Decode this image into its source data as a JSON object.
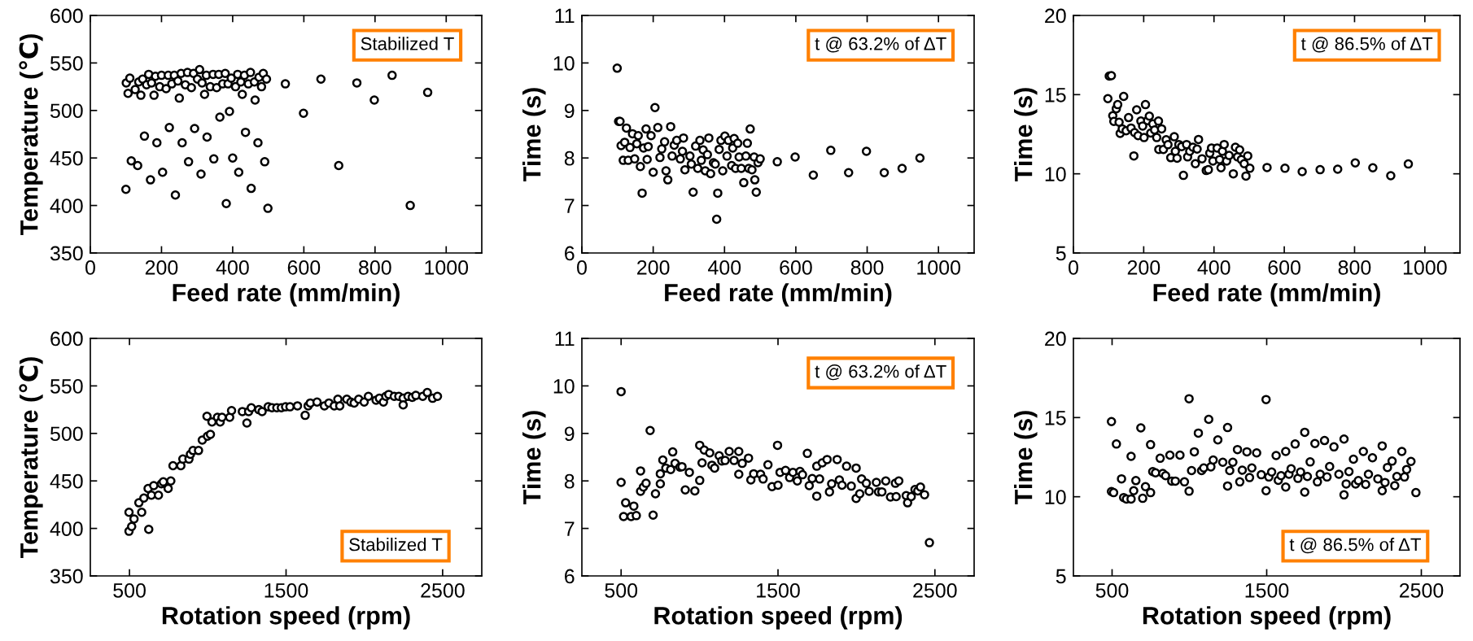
{
  "chart_data": [
    {
      "type": "scatter",
      "xlabel": "Feed rate (mm/min)",
      "ylabel": "Temperature (℃)",
      "annotations": [
        "Stabilized T"
      ],
      "marker": "circle",
      "color": "#000000",
      "xlim": [
        0,
        1100
      ],
      "xticks": [
        0,
        200,
        400,
        600,
        800,
        1000
      ],
      "ylim": [
        350,
        600
      ],
      "yticks": [
        350,
        400,
        450,
        500,
        550,
        600
      ],
      "x": [
        100,
        115,
        133,
        152,
        169,
        187,
        203,
        222,
        239,
        258,
        276,
        293,
        311,
        328,
        347,
        364,
        382,
        391,
        400,
        417,
        436,
        452,
        471,
        490,
        499,
        548,
        599,
        648,
        698,
        749,
        798,
        848,
        899,
        948,
        101,
        106,
        111,
        126,
        136,
        142,
        147,
        158,
        164,
        172,
        179,
        183,
        195,
        200,
        213,
        219,
        229,
        236,
        250,
        246,
        255,
        267,
        273,
        284,
        290,
        301,
        307,
        314,
        321,
        326,
        337,
        345,
        355,
        361,
        372,
        379,
        387,
        396,
        408,
        414,
        423,
        427,
        433,
        444,
        450,
        461,
        463,
        474,
        481,
        486,
        495
      ],
      "values": [
        417,
        447,
        442,
        473,
        427,
        466,
        435,
        482,
        411,
        466,
        446,
        481,
        433,
        472,
        449,
        493,
        402,
        499,
        450,
        435,
        477,
        418,
        466,
        446,
        397,
        528,
        497,
        533,
        442,
        529,
        511,
        537,
        400,
        519,
        529,
        518,
        534,
        522,
        530,
        516,
        533,
        527,
        538,
        529,
        516,
        536,
        525,
        537,
        523,
        537,
        528,
        537,
        513,
        531,
        539,
        527,
        540,
        524,
        539,
        533,
        543,
        529,
        517,
        537,
        525,
        538,
        524,
        538,
        528,
        539,
        528,
        534,
        525,
        538,
        530,
        517,
        537,
        528,
        540,
        530,
        511,
        535,
        525,
        539,
        533
      ]
    },
    {
      "type": "scatter",
      "xlabel": "Feed rate (mm/min)",
      "ylabel": "Time (s)",
      "annotations": [
        "t @ 63.2% of ΔT"
      ],
      "marker": "circle",
      "color": "#000000",
      "xlim": [
        0,
        1100
      ],
      "xticks": [
        0,
        200,
        400,
        600,
        800,
        1000
      ],
      "ylim": [
        6,
        11
      ],
      "yticks": [
        6,
        7,
        8,
        9,
        10,
        11
      ],
      "x": [
        99,
        103,
        107,
        110,
        116,
        120,
        125,
        130,
        135,
        142,
        148,
        154,
        158,
        164,
        169,
        173,
        180,
        183,
        186,
        194,
        200,
        205,
        213,
        219,
        224,
        232,
        236,
        241,
        249,
        253,
        259,
        266,
        276,
        282,
        285,
        289,
        303,
        307,
        312,
        319,
        325,
        331,
        335,
        340,
        346,
        352,
        356,
        361,
        369,
        374,
        381,
        378,
        385,
        390,
        395,
        401,
        407,
        411,
        420,
        423,
        427,
        431,
        437,
        441,
        447,
        454,
        460,
        464,
        468,
        472,
        477,
        483,
        485,
        489,
        494,
        500,
        548,
        598,
        649,
        698,
        748,
        798,
        848,
        898,
        948
      ],
      "values": [
        9.89,
        8.77,
        8.77,
        8.26,
        7.95,
        8.33,
        8.63,
        7.95,
        8.22,
        8.51,
        7.98,
        8.3,
        8.47,
        7.82,
        7.26,
        8.21,
        8.61,
        7.97,
        8.24,
        8.47,
        7.7,
        9.06,
        8.64,
        8.01,
        8.19,
        8.34,
        7.73,
        7.54,
        8.66,
        8.04,
        8.27,
        8.37,
        7.98,
        8.14,
        8.42,
        7.75,
        8.04,
        7.87,
        7.28,
        8.25,
        7.78,
        8.37,
        7.95,
        8.17,
        7.73,
        8.07,
        8.42,
        7.67,
        7.9,
        7.87,
        7.26,
        6.71,
        8.18,
        8.37,
        7.73,
        8.46,
        8.04,
        8.37,
        7.84,
        8.21,
        8.41,
        7.78,
        8.31,
        8.02,
        7.78,
        7.48,
        8.04,
        8.31,
        7.78,
        8.61,
        7.75,
        8.02,
        7.54,
        7.28,
        7.9,
        7.98,
        7.92,
        8.02,
        7.64,
        8.16,
        7.69,
        8.14,
        7.69,
        7.78,
        8.0
      ]
    },
    {
      "type": "scatter",
      "xlabel": "Feed rate (mm/min)",
      "ylabel": "Time (s)",
      "annotations": [
        "t @ 86.5% of ΔT"
      ],
      "marker": "circle",
      "color": "#000000",
      "xlim": [
        0,
        1100
      ],
      "xticks": [
        0,
        200,
        400,
        600,
        800,
        1000
      ],
      "ylim": [
        5,
        20
      ],
      "yticks": [
        5,
        10,
        15,
        20
      ],
      "x": [
        98,
        102,
        108,
        112,
        115,
        122,
        126,
        130,
        133,
        139,
        143,
        150,
        157,
        164,
        172,
        174,
        180,
        184,
        192,
        197,
        201,
        205,
        211,
        216,
        220,
        226,
        231,
        237,
        242,
        251,
        243,
        256,
        264,
        269,
        277,
        287,
        290,
        295,
        300,
        308,
        313,
        322,
        325,
        331,
        340,
        347,
        352,
        356,
        366,
        378,
        384,
        388,
        393,
        397,
        409,
        416,
        420,
        424,
        429,
        436,
        443,
        455,
        461,
        467,
        473,
        478,
        486,
        491,
        496,
        502,
        551,
        602,
        651,
        702,
        752,
        802,
        852,
        903,
        953
      ],
      "values": [
        14.75,
        16.17,
        16.2,
        13.67,
        13.31,
        14.11,
        14.37,
        13.26,
        12.55,
        12.84,
        14.89,
        12.72,
        13.55,
        12.89,
        11.13,
        12.6,
        14.04,
        12.41,
        13.33,
        13.02,
        12.29,
        14.37,
        13.36,
        13.64,
        12.58,
        13.15,
        12.77,
        12.29,
        13.33,
        12.84,
        11.54,
        11.54,
        12.15,
        11.84,
        11.02,
        12.34,
        11.42,
        10.99,
        11.85,
        11.72,
        9.9,
        11.85,
        11.07,
        11.42,
        11.68,
        10.64,
        11.56,
        12.17,
        10.95,
        10.21,
        10.26,
        11.3,
        11.63,
        10.81,
        11.63,
        10.9,
        10.38,
        11.42,
        11.85,
        10.81,
        11.16,
        10.0,
        11.68,
        11.07,
        11.51,
        10.9,
        10.64,
        9.86,
        11.13,
        10.35,
        10.4,
        10.35,
        10.14,
        10.26,
        10.29,
        10.69,
        10.38,
        9.88,
        10.62
      ]
    },
    {
      "type": "scatter",
      "xlabel": "Rotation speed (rpm)",
      "ylabel": "Temperature (℃)",
      "annotations": [
        "Stabilized T"
      ],
      "marker": "circle",
      "color": "#000000",
      "xlim": [
        250,
        2750
      ],
      "xticks": [
        500,
        1500,
        2500
      ],
      "ylim": [
        350,
        600
      ],
      "yticks": [
        350,
        400,
        450,
        500,
        550,
        600
      ],
      "x": [
        497,
        497,
        514,
        529,
        578,
        623,
        560,
        592,
        619,
        640,
        655,
        685,
        704,
        716,
        747,
        764,
        778,
        828,
        841,
        880,
        889,
        906,
        941,
        965,
        998,
        1017,
        995,
        1027,
        1062,
        1079,
        1091,
        1140,
        1152,
        1221,
        1250,
        1261,
        1278,
        1326,
        1347,
        1386,
        1410,
        1441,
        1470,
        1497,
        1525,
        1573,
        1622,
        1641,
        1655,
        1698,
        1745,
        1774,
        1808,
        1831,
        1843,
        1888,
        1914,
        1935,
        1964,
        1999,
        2026,
        2075,
        2096,
        2122,
        2137,
        2156,
        2191,
        2220,
        2248,
        2248,
        2279,
        2306,
        2329,
        2373,
        2402,
        2436,
        2467
      ],
      "values": [
        397,
        417,
        402,
        410,
        417,
        399,
        427,
        432,
        442,
        435,
        445,
        435,
        447,
        449,
        442,
        450,
        466,
        466,
        473,
        473,
        478,
        482,
        482,
        493,
        497,
        499,
        518,
        512,
        517,
        512,
        517,
        517,
        524,
        523,
        511,
        523,
        527,
        525,
        523,
        528,
        527,
        527,
        527,
        528,
        528,
        529,
        519,
        529,
        532,
        533,
        529,
        532,
        529,
        536,
        529,
        536,
        533,
        532,
        536,
        533,
        539,
        535,
        537,
        533,
        539,
        541,
        539,
        539,
        537,
        530,
        539,
        538,
        540,
        539,
        543,
        537,
        539
      ]
    },
    {
      "type": "scatter",
      "xlabel": "Rotation speed (rpm)",
      "ylabel": "Time (s)",
      "annotations": [
        "t @ 63.2% of ΔT"
      ],
      "marker": "circle",
      "color": "#000000",
      "xlim": [
        250,
        2750
      ],
      "xticks": [
        500,
        1500,
        2500
      ],
      "ylim": [
        6,
        11
      ],
      "yticks": [
        6,
        7,
        8,
        9,
        10,
        11
      ],
      "x": [
        500,
        500,
        516,
        529,
        564,
        581,
        597,
        624,
        624,
        642,
        659,
        685,
        704,
        719,
        750,
        750,
        766,
        785,
        816,
        829,
        844,
        875,
        888,
        909,
        935,
        970,
        1001,
        1001,
        1016,
        1030,
        1065,
        1079,
        1096,
        1125,
        1142,
        1163,
        1189,
        1220,
        1250,
        1250,
        1272,
        1312,
        1327,
        1345,
        1389,
        1405,
        1436,
        1462,
        1497,
        1500,
        1513,
        1548,
        1574,
        1595,
        1623,
        1640,
        1656,
        1687,
        1699,
        1718,
        1747,
        1747,
        1765,
        1782,
        1813,
        1828,
        1842,
        1877,
        1891,
        1908,
        1937,
        1967,
        1998,
        1998,
        2021,
        2033,
        2063,
        2081,
        2127,
        2141,
        2162,
        2187,
        2217,
        2248,
        2253,
        2270,
        2317,
        2326,
        2349,
        2373,
        2391,
        2408,
        2434,
        2465
      ],
      "values": [
        9.88,
        7.97,
        7.25,
        7.54,
        7.25,
        7.47,
        7.27,
        8.21,
        7.78,
        7.87,
        7.95,
        9.06,
        7.28,
        7.73,
        7.94,
        8.15,
        8.44,
        8.27,
        8.24,
        8.61,
        8.37,
        8.29,
        8.3,
        7.81,
        8.18,
        7.79,
        8.01,
        8.75,
        8.38,
        8.65,
        8.59,
        8.33,
        8.27,
        8.53,
        8.42,
        8.43,
        8.62,
        8.43,
        8.62,
        8.14,
        8.37,
        8.48,
        8.02,
        8.15,
        8.14,
        8.04,
        8.34,
        7.88,
        8.75,
        7.91,
        8.18,
        8.22,
        8.07,
        8.18,
        8.0,
        8.2,
        8.13,
        8.58,
        7.9,
        8.05,
        7.68,
        8.31,
        8.04,
        8.38,
        8.45,
        7.77,
        7.94,
        8.45,
        8.02,
        7.91,
        8.31,
        7.89,
        8.27,
        7.63,
        7.73,
        8.04,
        7.95,
        7.78,
        7.97,
        7.77,
        7.77,
        8.0,
        7.66,
        7.95,
        7.67,
        8.0,
        7.69,
        7.54,
        7.67,
        7.82,
        7.79,
        7.87,
        7.71,
        6.7
      ]
    },
    {
      "type": "scatter",
      "xlabel": "Rotation speed (rpm)",
      "ylabel": "Time (s)",
      "annotations": [
        "t @ 86.5% of ΔT"
      ],
      "marker": "circle",
      "color": "#000000",
      "xlim": [
        250,
        2750
      ],
      "xticks": [
        500,
        1500,
        2500
      ],
      "ylim": [
        5,
        20
      ],
      "yticks": [
        5,
        10,
        15,
        20
      ],
      "x": [
        496,
        496,
        510,
        528,
        561,
        575,
        593,
        623,
        623,
        640,
        654,
        686,
        698,
        716,
        749,
        749,
        763,
        781,
        811,
        828,
        846,
        874,
        886,
        909,
        939,
        968,
        998,
        998,
        1014,
        1032,
        1058,
        1079,
        1093,
        1125,
        1139,
        1154,
        1184,
        1216,
        1247,
        1247,
        1261,
        1281,
        1311,
        1326,
        1342,
        1372,
        1389,
        1404,
        1435,
        1465,
        1496,
        1496,
        1514,
        1532,
        1561,
        1575,
        1593,
        1623,
        1623,
        1644,
        1658,
        1684,
        1702,
        1719,
        1746,
        1746,
        1763,
        1781,
        1812,
        1828,
        1846,
        1874,
        1890,
        1907,
        1935,
        1967,
        2000,
        2000,
        2014,
        2032,
        2061,
        2075,
        2093,
        2125,
        2140,
        2158,
        2184,
        2219,
        2247,
        2247,
        2265,
        2281,
        2311,
        2328,
        2342,
        2374,
        2391,
        2405,
        2433,
        2465
      ],
      "values": [
        14.75,
        10.33,
        10.26,
        13.33,
        11.13,
        9.95,
        9.86,
        12.55,
        9.86,
        10.38,
        11.02,
        14.35,
        9.9,
        10.64,
        13.29,
        10.26,
        11.59,
        11.51,
        12.43,
        11.47,
        11.33,
        12.63,
        10.99,
        10.99,
        12.63,
        10.94,
        16.19,
        10.35,
        11.65,
        12.84,
        14.02,
        11.65,
        11.82,
        14.89,
        11.89,
        12.32,
        13.59,
        12.18,
        14.37,
        10.68,
        11.65,
        12.18,
        12.98,
        10.94,
        11.68,
        12.84,
        11.21,
        11.82,
        12.77,
        11.39,
        16.14,
        10.38,
        11.25,
        11.56,
        12.6,
        11.04,
        11.33,
        10.61,
        12.86,
        11.42,
        11.77,
        13.33,
        11.16,
        11.56,
        14.07,
        10.29,
        11.28,
        12.2,
        13.36,
        10.94,
        11.42,
        13.55,
        11.25,
        11.91,
        13.15,
        11.42,
        13.64,
        10.12,
        10.81,
        11.59,
        12.37,
        10.81,
        11.02,
        12.86,
        10.78,
        11.42,
        12.46,
        11.13,
        13.21,
        10.38,
        10.9,
        11.85,
        12.25,
        10.7,
        11.28,
        12.86,
        11.25,
        11.72,
        12.23,
        10.26
      ]
    }
  ]
}
